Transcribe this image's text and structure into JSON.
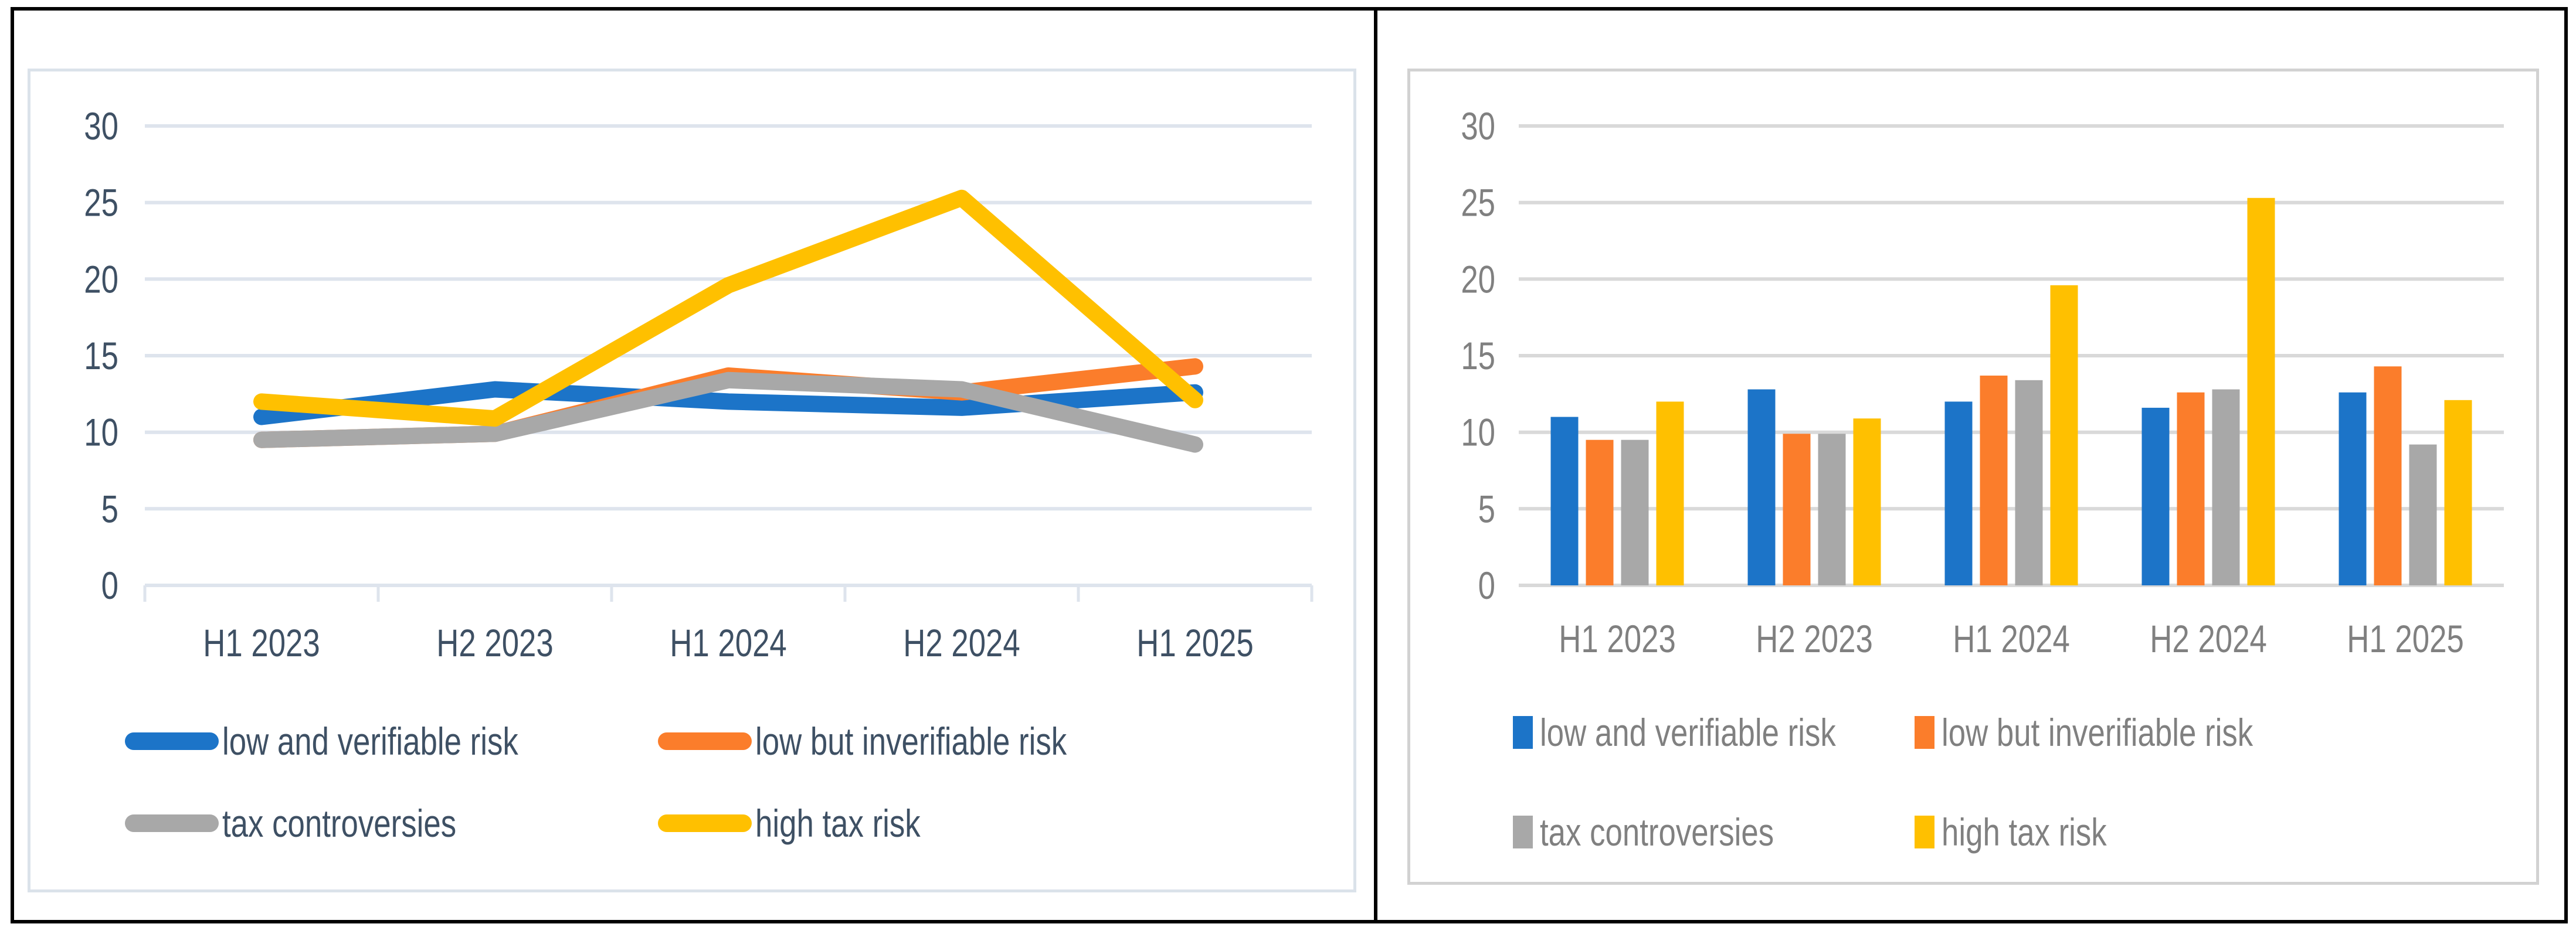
{
  "page": {
    "background": "#FFFFFF",
    "panel_border_color": "#000000"
  },
  "chart_data": [
    {
      "type": "line",
      "title": "",
      "categories": [
        "H1 2023",
        "H2 2023",
        "H1 2024",
        "H2 2024",
        "H1 2025"
      ],
      "series": [
        {
          "name": "low and verifiable risk",
          "color": "#1C74C8",
          "values": [
            11.0,
            12.8,
            12.0,
            11.6,
            12.6
          ]
        },
        {
          "name": "low but inverifiable risk",
          "color": "#FB7D2B",
          "values": [
            9.5,
            9.9,
            13.7,
            12.6,
            14.3
          ]
        },
        {
          "name": "tax controversies",
          "color": "#A8A8A8",
          "values": [
            9.5,
            9.9,
            13.4,
            12.8,
            9.2
          ]
        },
        {
          "name": "high tax risk",
          "color": "#FFC000",
          "values": [
            12.0,
            10.9,
            19.6,
            25.3,
            12.1
          ]
        }
      ],
      "ylim": [
        0,
        30
      ],
      "ytick_step": 5,
      "yticks": [
        "0",
        "5",
        "10",
        "15",
        "20",
        "25",
        "30"
      ],
      "grid": true,
      "legend_position": "bottom",
      "axis_text_color": "#3E5064",
      "grid_color": "#DEE4ED",
      "box_border_color": "#DBE2EA",
      "line_width": 28,
      "x_tick_marks": true
    },
    {
      "type": "bar",
      "title": "",
      "categories": [
        "H1 2023",
        "H2 2023",
        "H1 2024",
        "H2 2024",
        "H1 2025"
      ],
      "series": [
        {
          "name": "low and verifiable risk",
          "color": "#1C74C8",
          "values": [
            11.0,
            12.8,
            12.0,
            11.6,
            12.6
          ]
        },
        {
          "name": "low but inverifiable risk",
          "color": "#FB7D2B",
          "values": [
            9.5,
            9.9,
            13.7,
            12.6,
            14.3
          ]
        },
        {
          "name": "tax controversies",
          "color": "#A8A8A8",
          "values": [
            9.5,
            9.9,
            13.4,
            12.8,
            9.2
          ]
        },
        {
          "name": "high tax risk",
          "color": "#FFC000",
          "values": [
            12.0,
            10.9,
            19.6,
            25.3,
            12.1
          ]
        }
      ],
      "ylim": [
        0,
        30
      ],
      "ytick_step": 5,
      "yticks": [
        "0",
        "5",
        "10",
        "15",
        "20",
        "25",
        "30"
      ],
      "grid": true,
      "legend_position": "bottom",
      "axis_text_color": "#808080",
      "grid_color": "#D9D9D9",
      "box_border_color": "#D2D2D2",
      "x_tick_marks": false
    }
  ]
}
